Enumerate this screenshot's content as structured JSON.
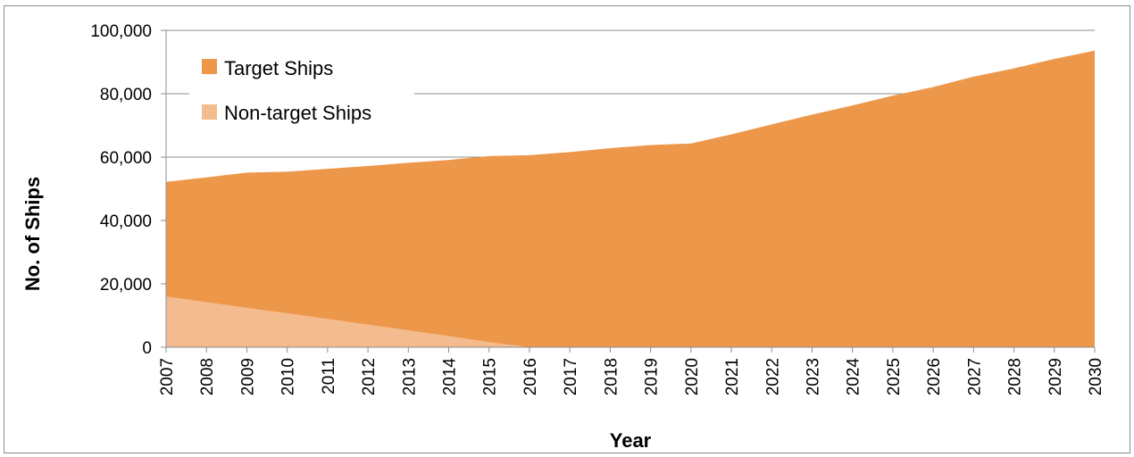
{
  "chart_data": {
    "type": "area",
    "stacked": true,
    "xlabel": "Year",
    "ylabel": "No. of Ships",
    "ylim": [
      0,
      100000
    ],
    "yticks": [
      0,
      20000,
      40000,
      60000,
      80000,
      100000
    ],
    "ytick_labels": [
      "0",
      "20,000",
      "40,000",
      "60,000",
      "80,000",
      "100,000"
    ],
    "categories": [
      "2007",
      "2008",
      "2009",
      "2010",
      "2011",
      "2012",
      "2013",
      "2014",
      "2015",
      "2016",
      "2017",
      "2018",
      "2019",
      "2020",
      "2021",
      "2022",
      "2023",
      "2024",
      "2025",
      "2026",
      "2027",
      "2028",
      "2029",
      "2030"
    ],
    "series": [
      {
        "name": "Non-target Ships",
        "color": "#f4bc8e",
        "values": [
          16000,
          14200,
          12400,
          10700,
          8900,
          7100,
          5300,
          3500,
          1600,
          0,
          0,
          0,
          0,
          0,
          0,
          0,
          0,
          0,
          0,
          0,
          0,
          0,
          0,
          0
        ]
      },
      {
        "name": "Target Ships",
        "color": "#ed974b",
        "values": [
          36200,
          39400,
          42700,
          44700,
          47400,
          50100,
          52900,
          55600,
          58700,
          60600,
          61600,
          62800,
          63800,
          64300,
          67200,
          70300,
          73400,
          76300,
          79400,
          82100,
          85400,
          88000,
          91000,
          93600
        ]
      }
    ],
    "legend": {
      "placement": "top-left",
      "entries": [
        {
          "label": "Target Ships",
          "color": "#ed974b"
        },
        {
          "label": "Non-target Ships",
          "color": "#f4bc8e"
        }
      ]
    },
    "grid": {
      "y": true,
      "x": false
    }
  }
}
